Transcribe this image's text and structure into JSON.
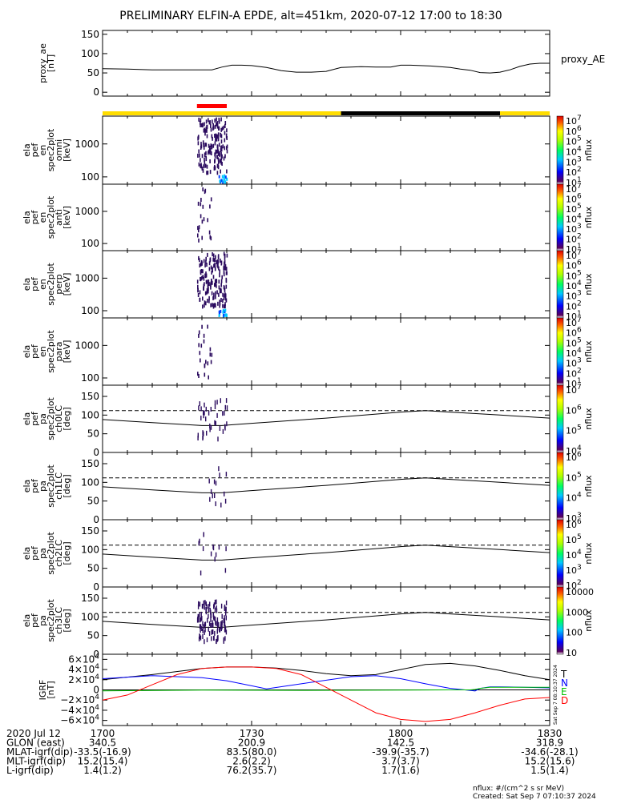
{
  "title": "PRELIMINARY ELFIN-A EPDE, alt=451km, 2020-07-12 17:00 to 18:30",
  "flux_units_note": "nflux: #/(cm^2 s sr MeV)",
  "created": "Created: Sat Sep  7 07:10:37 2024",
  "side_stamp": "Sat Sep  7 08:10:37 2024",
  "colors": {
    "axis": "#000000",
    "state_bar_yellow": "#ffdd00",
    "state_bar_black": "#000000",
    "science_bar_red": "#ff0000",
    "grf_T": "#000000",
    "grf_N": "#0000ff",
    "grf_E": "#00c000",
    "grf_D": "#ff0000",
    "spectrogram_dots": "#2a0a5e"
  },
  "time_axis": {
    "start_min": 0,
    "end_min": 90,
    "tick_labels": [
      "1700",
      "1730",
      "1800",
      "1830"
    ],
    "tick_values_min": [
      0,
      30,
      60,
      90
    ],
    "minor_tick_step_min": 5
  },
  "state_bars": {
    "yellow_segments_min": [
      [
        0,
        48
      ],
      [
        80,
        90
      ]
    ],
    "black_segments_min": [
      [
        48,
        80
      ]
    ],
    "red_segments_min": [
      [
        19,
        25
      ]
    ]
  },
  "chart_data": [
    {
      "id": "proxy_ae",
      "type": "line",
      "ylabel": "proxy_ae\n[nT]",
      "series_label": "proxy_AE",
      "ylim": [
        -10,
        160
      ],
      "yticks": [
        "150",
        "100",
        "50",
        "0"
      ],
      "ytick_values": [
        150,
        100,
        50,
        0
      ],
      "x_min": [
        0,
        5,
        10,
        15,
        20,
        22,
        24,
        26,
        28,
        30,
        33,
        36,
        39,
        42,
        45,
        48,
        52,
        55,
        58,
        60,
        62,
        64,
        66,
        70,
        72,
        74,
        76,
        78,
        80,
        82,
        84,
        86,
        88,
        90
      ],
      "y": [
        61,
        60,
        58,
        58,
        58,
        58,
        65,
        70,
        70,
        69,
        64,
        56,
        52,
        52,
        54,
        64,
        66,
        65,
        65,
        70,
        70,
        69,
        68,
        64,
        60,
        57,
        51,
        50,
        52,
        58,
        67,
        73,
        75,
        75
      ]
    },
    {
      "id": "spec_omni",
      "type": "heatmap",
      "ylabel": "ela\npef\nen\nspec2plot\nomni\n[keV]",
      "yscale": "log",
      "ylim": [
        60,
        7000
      ],
      "yticks": [
        "1000",
        "100"
      ],
      "ytick_values": [
        1000,
        100
      ],
      "colorbar_label": "nflux",
      "colorbar_ticks": [
        "10^7",
        "10^6",
        "10^5",
        "10^4",
        "10^3",
        "10^2",
        "10^1"
      ],
      "active_interval_min": [
        19,
        25
      ]
    },
    {
      "id": "spec_anti",
      "type": "heatmap",
      "ylabel": "ela\npef\nen\nspec2plot\nanti\n[keV]",
      "yscale": "log",
      "ylim": [
        60,
        7000
      ],
      "yticks": [
        "1000",
        "100"
      ],
      "ytick_values": [
        1000,
        100
      ],
      "colorbar_label": "nflux",
      "colorbar_ticks": [
        "10^7",
        "10^6",
        "10^5",
        "10^4",
        "10^3",
        "10^2",
        "10^1"
      ],
      "active_interval_min": [
        19,
        22
      ]
    },
    {
      "id": "spec_perp",
      "type": "heatmap",
      "ylabel": "ela\npef\nen\nspec2plot\nperp\n[keV]",
      "yscale": "log",
      "ylim": [
        60,
        7000
      ],
      "yticks": [
        "1000",
        "100"
      ],
      "ytick_values": [
        1000,
        100
      ],
      "colorbar_label": "nflux",
      "colorbar_ticks": [
        "10^7",
        "10^6",
        "10^5",
        "10^4",
        "10^3",
        "10^2",
        "10^1"
      ],
      "active_interval_min": [
        19,
        25
      ]
    },
    {
      "id": "spec_para",
      "type": "heatmap",
      "ylabel": "ela\npef\nen\nspec2plot\npara\n[keV]",
      "yscale": "log",
      "ylim": [
        60,
        7000
      ],
      "yticks": [
        "1000",
        "100"
      ],
      "ytick_values": [
        1000,
        100
      ],
      "colorbar_label": "nflux",
      "colorbar_ticks": [
        "10^7",
        "10^6",
        "10^5",
        "10^4",
        "10^3",
        "10^2",
        "10^1"
      ],
      "active_interval_min": [
        19,
        22
      ]
    },
    {
      "id": "pa_ch0",
      "type": "line",
      "ylabel": "ela\npef\npa\nspec2plot\nch0LC\n[deg]",
      "ylim": [
        0,
        180
      ],
      "yticks": [
        "150",
        "100",
        "50",
        "0"
      ],
      "ytick_values": [
        150,
        100,
        50,
        0
      ],
      "dashed_level": 112,
      "colorbar_label": "nflux",
      "colorbar_ticks": [
        "10^7",
        "10^6",
        "10^5",
        "10^4"
      ]
    },
    {
      "id": "pa_ch1",
      "type": "line",
      "ylabel": "ela\npef\npa\nspec2plot\nch1LC\n[deg]",
      "ylim": [
        0,
        180
      ],
      "yticks": [
        "150",
        "100",
        "50",
        "0"
      ],
      "ytick_values": [
        150,
        100,
        50,
        0
      ],
      "dashed_level": 112,
      "colorbar_label": "nflux",
      "colorbar_ticks": [
        "10^6",
        "10^5",
        "10^4",
        "10^3"
      ]
    },
    {
      "id": "pa_ch2",
      "type": "line",
      "ylabel": "ela\npef\npa\nspec2plot\nch2LC\n[deg]",
      "ylim": [
        0,
        180
      ],
      "yticks": [
        "150",
        "100",
        "50",
        "0"
      ],
      "ytick_values": [
        150,
        100,
        50,
        0
      ],
      "dashed_level": 112,
      "colorbar_label": "nflux",
      "colorbar_ticks": [
        "10^6",
        "10^5",
        "10^4",
        "10^3",
        "10^2"
      ]
    },
    {
      "id": "pa_ch3",
      "type": "line",
      "ylabel": "ela\npef\npa\nspec2plot\nch3LC\n[deg]",
      "ylim": [
        0,
        180
      ],
      "yticks": [
        "150",
        "100",
        "50",
        "0"
      ],
      "ytick_values": [
        150,
        100,
        50,
        0
      ],
      "dashed_level": 112,
      "colorbar_label": "nflux",
      "colorbar_ticks": [
        "10000",
        "1000",
        "100",
        "10"
      ]
    },
    {
      "id": "igrf",
      "type": "line",
      "ylabel": "IGRF\n[nT]",
      "ylim": [
        -70000,
        70000
      ],
      "yticks": [
        "6×10^4",
        "4×10^4",
        "2×10^4",
        "0",
        "−2×10^4",
        "−4×10^4",
        "−6×10^4"
      ],
      "ytick_values": [
        60000,
        40000,
        20000,
        0,
        -20000,
        -40000,
        -60000
      ],
      "legend": [
        "T",
        "N",
        "E",
        "D"
      ],
      "series": [
        {
          "name": "T",
          "x_min": [
            0,
            10,
            20,
            25,
            30,
            35,
            40,
            45,
            50,
            55,
            60,
            65,
            70,
            75,
            80,
            85,
            90
          ],
          "y": [
            20000,
            30000,
            42000,
            45000,
            45000,
            43000,
            38000,
            32000,
            28000,
            30000,
            40000,
            50000,
            52000,
            47000,
            38000,
            28000,
            20000
          ]
        },
        {
          "name": "N",
          "x_min": [
            0,
            10,
            20,
            25,
            30,
            33,
            40,
            50,
            55,
            60,
            65,
            70,
            75,
            76,
            78,
            80,
            85,
            90
          ],
          "y": [
            22000,
            28000,
            24000,
            18000,
            8000,
            2000,
            12000,
            26000,
            28000,
            22000,
            12000,
            3000,
            -2000,
            3000,
            6000,
            6000,
            5000,
            4000
          ]
        },
        {
          "name": "E",
          "x_min": [
            0,
            20,
            40,
            60,
            70,
            74,
            75,
            76,
            78,
            80,
            85,
            90
          ],
          "y": [
            -2000,
            -500,
            -1000,
            -500,
            0,
            0,
            1000,
            3000,
            5000,
            5000,
            5000,
            5000
          ]
        },
        {
          "name": "D",
          "x_min": [
            0,
            5,
            10,
            15,
            20,
            25,
            30,
            35,
            40,
            45,
            50,
            55,
            60,
            65,
            70,
            75,
            80,
            85,
            90
          ],
          "y": [
            -20000,
            -10000,
            10000,
            30000,
            42000,
            45000,
            45000,
            42000,
            30000,
            5000,
            -20000,
            -45000,
            -58000,
            -62000,
            -58000,
            -45000,
            -30000,
            -18000,
            -15000
          ]
        }
      ]
    }
  ],
  "footer": {
    "rows": [
      {
        "label": "2020 Jul 12",
        "values": [
          "1700",
          "1730",
          "1800",
          "1830"
        ]
      },
      {
        "label": "GLON (east)",
        "values": [
          "340.5",
          "200.9",
          "142.5",
          "318.9"
        ]
      },
      {
        "label": "MLAT-igrf(dip)",
        "values": [
          "-33.5(-16.9)",
          "83.5(80.0)",
          "-39.9(-35.7)",
          "-34.6(-28.1)"
        ]
      },
      {
        "label": "MLT-igrf(dip)",
        "values": [
          "15.2(15.4)",
          "2.6(2.2)",
          "3.7(3.7)",
          "15.2(15.6)"
        ]
      },
      {
        "label": "L-igrf(dip)",
        "values": [
          "1.4(1.2)",
          "76.2(35.7)",
          "1.7(1.6)",
          "1.5(1.4)"
        ]
      }
    ]
  }
}
